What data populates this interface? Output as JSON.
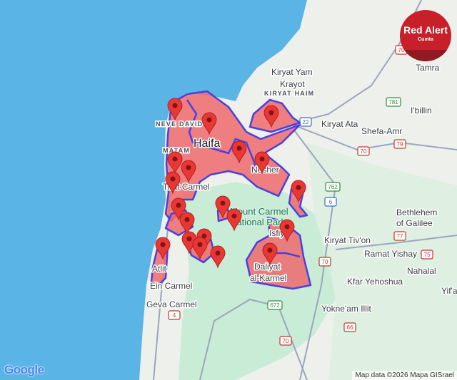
{
  "map": {
    "colors": {
      "sea": "#5ab4e5",
      "land": "#eef0ec",
      "park": "#c9ecd6",
      "alert_fill": "#ef6a6f",
      "alert_border": "#4b3fe0",
      "pin": "#e53935",
      "road": "#9aa6bd"
    },
    "labels": {
      "kiryat_yam": "Kiryat Yam",
      "krayot": "Krayot",
      "kiryat_haim": "KIRYAT HAIM",
      "tamra": "Tamra",
      "ibillin": "I'billin",
      "kiryat_ata": "Kiryat Ata",
      "shefa_amr": "Shefa-Amr",
      "neve_david": "NEVE DAVID",
      "haifa": "Haifa",
      "matam": "MATAM",
      "nesher": "Nesher",
      "tirat_carmel": "Tirat Carmel",
      "park_1": "Mount Carmel",
      "park_2": "National Park",
      "isfiya": "Isfiya",
      "bethlehem_1": "Bethlehem",
      "bethlehem_2": "of Galilee",
      "kiryat_tivon": "Kiryat Tiv'on",
      "ramat_yishay": "Ramat Yishay",
      "daliyat_1": "Daliyat",
      "daliyat_2": "al-Karmel",
      "atlit": "Atlit",
      "nahalal": "Nahalal",
      "kfar_yehoshua": "Kfar Yehoshua",
      "yifa": "Yif'a",
      "ein_carmel": "Ein Carmel",
      "geva_carmel": "Geva Carmel",
      "yokneam": "Yokne'am Illit"
    },
    "road_shields": [
      "70",
      "781",
      "22",
      "70",
      "79",
      "762",
      "6",
      "77",
      "75",
      "70",
      "672",
      "4",
      "66",
      "70"
    ],
    "alert_pin_count": 20,
    "attribution": "Map data ©2026 Mapa GISrael",
    "google_logo": "Google"
  },
  "badge": {
    "title": "Red Alert",
    "subtitle": "Cumta"
  }
}
